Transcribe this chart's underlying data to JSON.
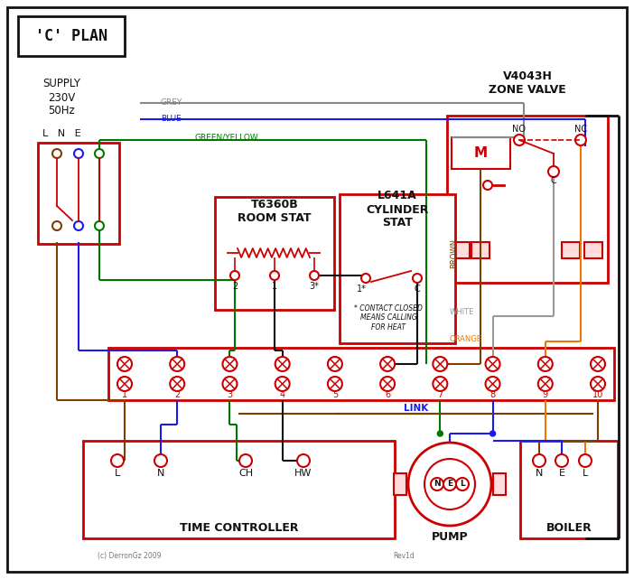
{
  "title": "'C' PLAN",
  "bg": "#ffffff",
  "red": "#cc0000",
  "blue": "#1a1aee",
  "green": "#007700",
  "grey": "#888888",
  "brown": "#7B3F00",
  "orange": "#EE7700",
  "black": "#111111",
  "wht": "#999999",
  "supply_label": "SUPPLY\n230V\n50Hz",
  "lne": "L   N   E",
  "zone_valve": "V4043H\nZONE VALVE",
  "room_stat_t": "T6360B\nROOM STAT",
  "cyl_stat_t": "L641A\nCYLINDER\nSTAT",
  "time_ctrl": "TIME CONTROLLER",
  "pump_lbl": "PUMP",
  "boiler_lbl": "BOILER",
  "link_lbl": "LINK",
  "contact_note": "* CONTACT CLOSED\nMEANS CALLING\nFOR HEAT",
  "terminals": [
    "1",
    "2",
    "3",
    "4",
    "5",
    "6",
    "7",
    "8",
    "9",
    "10"
  ],
  "tc_terms": [
    "L",
    "N",
    "CH",
    "HW"
  ],
  "pmp_terms": [
    "N",
    "E",
    "L"
  ],
  "blr_terms": [
    "N",
    "E",
    "L"
  ],
  "grey_lbl": "GREY",
  "blue_lbl": "BLUE",
  "gy_lbl": "GREEN/YELLOW",
  "brn_lbl": "BROWN",
  "wht_lbl": "WHITE",
  "org_lbl": "ORANGE",
  "no_lbl": "NO",
  "nc_lbl": "NC",
  "c_lbl": "C",
  "m_lbl": "M",
  "copyright": "(c) DerronGz 2009",
  "rev": "Rev1d"
}
